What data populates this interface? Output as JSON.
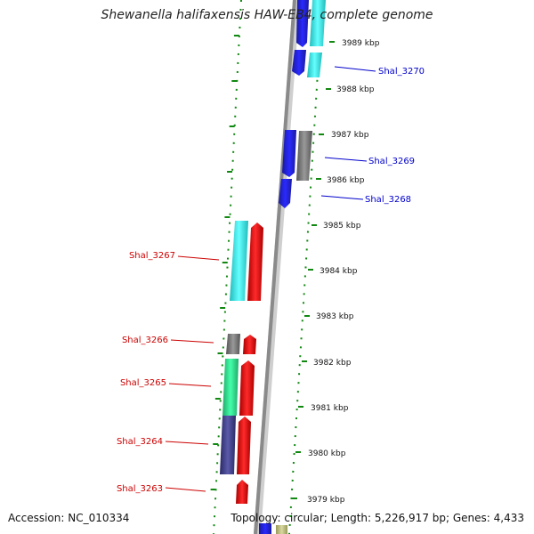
{
  "header": {
    "title": "Shewanella halifaxensis HAW-EB4, complete genome"
  },
  "footer": {
    "accession": "Accession: NC_010334",
    "topology": "Topology: circular; Length: 5,226,917 bp; Genes: 4,433"
  },
  "colors": {
    "label_forward": "#0000cc",
    "label_reverse": "#cc0000",
    "tick_green": "#118811",
    "backbone": "#8a8a8a"
  },
  "ticks": [
    {
      "label": "3989 kbp"
    },
    {
      "label": "3988 kbp"
    },
    {
      "label": "3987 kbp"
    },
    {
      "label": "3986 kbp"
    },
    {
      "label": "3985 kbp"
    },
    {
      "label": "3984 kbp"
    },
    {
      "label": "3983 kbp"
    },
    {
      "label": "3982 kbp"
    },
    {
      "label": "3981 kbp"
    },
    {
      "label": "3980 kbp"
    },
    {
      "label": "3979 kbp"
    }
  ],
  "genes": [
    {
      "label": "Shal_3270",
      "strand": "forward"
    },
    {
      "label": "Shal_3269",
      "strand": "forward"
    },
    {
      "label": "Shal_3268",
      "strand": "forward"
    },
    {
      "label": "Shal_3267",
      "strand": "reverse"
    },
    {
      "label": "Shal_3266",
      "strand": "reverse"
    },
    {
      "label": "Shal_3265",
      "strand": "reverse"
    },
    {
      "label": "Shal_3264",
      "strand": "reverse"
    },
    {
      "label": "Shal_3263",
      "strand": "reverse"
    }
  ]
}
